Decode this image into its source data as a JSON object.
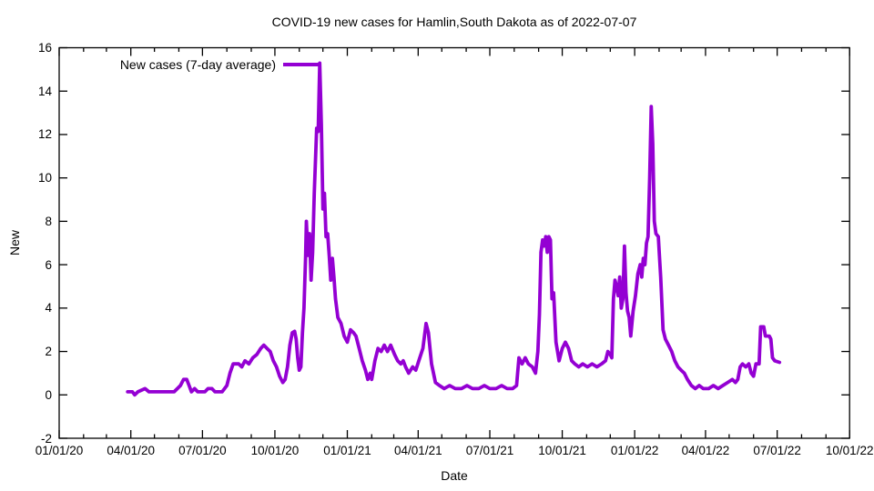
{
  "styles": {
    "background": "#ffffff",
    "text_color": "#000000",
    "accent": "#9400d3"
  },
  "chart_data": {
    "type": "line",
    "title": "COVID-19 new cases for Hamlin,South Dakota as of 2022-07-07",
    "xlabel": "Date",
    "ylabel": "New",
    "grid": false,
    "legend": {
      "position": "top-left-inside",
      "entries": [
        {
          "label": "New cases (7-day average)",
          "color": "#9400d3"
        }
      ]
    },
    "axes": {
      "x": {
        "start_date": "2020-01-01",
        "end_date": "2022-10-01",
        "major_ticks": [
          {
            "date": "2020-01-01",
            "label": "01/01/20"
          },
          {
            "date": "2020-04-01",
            "label": "04/01/20"
          },
          {
            "date": "2020-07-01",
            "label": "07/01/20"
          },
          {
            "date": "2020-10-01",
            "label": "10/01/20"
          },
          {
            "date": "2021-01-01",
            "label": "01/01/21"
          },
          {
            "date": "2021-04-01",
            "label": "04/01/21"
          },
          {
            "date": "2021-07-01",
            "label": "07/01/21"
          },
          {
            "date": "2021-10-01",
            "label": "10/01/21"
          },
          {
            "date": "2022-01-01",
            "label": "01/01/22"
          },
          {
            "date": "2022-04-01",
            "label": "04/01/22"
          },
          {
            "date": "2022-07-01",
            "label": "07/01/22"
          },
          {
            "date": "2022-10-01",
            "label": "10/01/22"
          }
        ],
        "minor_tick_interval": "1 month"
      },
      "y": {
        "min": -2,
        "max": 16,
        "tick_step": 2,
        "tick_labels": [
          "-2",
          "0",
          "2",
          "4",
          "6",
          "8",
          "10",
          "12",
          "14",
          "16"
        ]
      }
    },
    "series": [
      {
        "name": "New cases (7-day average)",
        "color": "#9400d3",
        "line_width": 3.8,
        "points": [
          [
            "2020-03-28",
            0.14
          ],
          [
            "2020-04-03",
            0.14
          ],
          [
            "2020-04-06",
            0
          ],
          [
            "2020-04-10",
            0.14
          ],
          [
            "2020-04-19",
            0.29
          ],
          [
            "2020-04-24",
            0.14
          ],
          [
            "2020-05-10",
            0.14
          ],
          [
            "2020-05-26",
            0.14
          ],
          [
            "2020-06-03",
            0.43
          ],
          [
            "2020-06-07",
            0.71
          ],
          [
            "2020-06-11",
            0.71
          ],
          [
            "2020-06-14",
            0.43
          ],
          [
            "2020-06-17",
            0.14
          ],
          [
            "2020-06-21",
            0.29
          ],
          [
            "2020-06-25",
            0.14
          ],
          [
            "2020-07-04",
            0.14
          ],
          [
            "2020-07-08",
            0.29
          ],
          [
            "2020-07-13",
            0.29
          ],
          [
            "2020-07-17",
            0.14
          ],
          [
            "2020-07-26",
            0.14
          ],
          [
            "2020-08-01",
            0.43
          ],
          [
            "2020-08-05",
            1.0
          ],
          [
            "2020-08-09",
            1.43
          ],
          [
            "2020-08-16",
            1.43
          ],
          [
            "2020-08-20",
            1.29
          ],
          [
            "2020-08-24",
            1.57
          ],
          [
            "2020-08-29",
            1.43
          ],
          [
            "2020-09-03",
            1.71
          ],
          [
            "2020-09-08",
            1.86
          ],
          [
            "2020-09-13",
            2.14
          ],
          [
            "2020-09-17",
            2.29
          ],
          [
            "2020-09-21",
            2.14
          ],
          [
            "2020-09-25",
            2.0
          ],
          [
            "2020-09-29",
            1.57
          ],
          [
            "2020-10-03",
            1.29
          ],
          [
            "2020-10-07",
            0.86
          ],
          [
            "2020-10-11",
            0.57
          ],
          [
            "2020-10-14",
            0.71
          ],
          [
            "2020-10-17",
            1.29
          ],
          [
            "2020-10-20",
            2.29
          ],
          [
            "2020-10-23",
            2.86
          ],
          [
            "2020-10-26",
            2.93
          ],
          [
            "2020-10-28",
            2.57
          ],
          [
            "2020-10-30",
            1.71
          ],
          [
            "2020-11-01",
            1.14
          ],
          [
            "2020-11-03",
            1.29
          ],
          [
            "2020-11-05",
            2.86
          ],
          [
            "2020-11-07",
            4.0
          ],
          [
            "2020-11-09",
            6.43
          ],
          [
            "2020-11-10",
            8.0
          ],
          [
            "2020-11-12",
            6.43
          ],
          [
            "2020-11-14",
            7.43
          ],
          [
            "2020-11-16",
            5.29
          ],
          [
            "2020-11-18",
            6.57
          ],
          [
            "2020-11-20",
            9.29
          ],
          [
            "2020-11-23",
            12.29
          ],
          [
            "2020-11-25",
            12.14
          ],
          [
            "2020-11-27",
            15.29
          ],
          [
            "2020-11-29",
            12.43
          ],
          [
            "2020-12-01",
            8.57
          ],
          [
            "2020-12-03",
            9.29
          ],
          [
            "2020-12-05",
            7.29
          ],
          [
            "2020-12-07",
            7.43
          ],
          [
            "2020-12-09",
            6.43
          ],
          [
            "2020-12-11",
            5.29
          ],
          [
            "2020-12-13",
            6.29
          ],
          [
            "2020-12-15",
            5.43
          ],
          [
            "2020-12-17",
            4.43
          ],
          [
            "2020-12-20",
            3.57
          ],
          [
            "2020-12-24",
            3.29
          ],
          [
            "2020-12-28",
            2.71
          ],
          [
            "2021-01-01",
            2.43
          ],
          [
            "2021-01-05",
            3.0
          ],
          [
            "2021-01-09",
            2.86
          ],
          [
            "2021-01-12",
            2.71
          ],
          [
            "2021-01-16",
            2.14
          ],
          [
            "2021-01-20",
            1.57
          ],
          [
            "2021-01-24",
            1.14
          ],
          [
            "2021-01-27",
            0.71
          ],
          [
            "2021-01-30",
            1.0
          ],
          [
            "2021-02-01",
            0.71
          ],
          [
            "2021-02-05",
            1.57
          ],
          [
            "2021-02-09",
            2.14
          ],
          [
            "2021-02-13",
            2.0
          ],
          [
            "2021-02-17",
            2.29
          ],
          [
            "2021-02-21",
            2.0
          ],
          [
            "2021-02-25",
            2.29
          ],
          [
            "2021-03-02",
            1.86
          ],
          [
            "2021-03-06",
            1.57
          ],
          [
            "2021-03-10",
            1.43
          ],
          [
            "2021-03-13",
            1.57
          ],
          [
            "2021-03-16",
            1.29
          ],
          [
            "2021-03-20",
            1.0
          ],
          [
            "2021-03-25",
            1.29
          ],
          [
            "2021-03-29",
            1.14
          ],
          [
            "2021-04-03",
            1.71
          ],
          [
            "2021-04-07",
            2.14
          ],
          [
            "2021-04-11",
            3.29
          ],
          [
            "2021-04-14",
            2.86
          ],
          [
            "2021-04-18",
            1.43
          ],
          [
            "2021-04-23",
            0.57
          ],
          [
            "2021-04-28",
            0.43
          ],
          [
            "2021-05-04",
            0.29
          ],
          [
            "2021-05-11",
            0.43
          ],
          [
            "2021-05-18",
            0.29
          ],
          [
            "2021-05-26",
            0.29
          ],
          [
            "2021-06-02",
            0.43
          ],
          [
            "2021-06-09",
            0.29
          ],
          [
            "2021-06-17",
            0.29
          ],
          [
            "2021-06-24",
            0.43
          ],
          [
            "2021-07-01",
            0.29
          ],
          [
            "2021-07-09",
            0.29
          ],
          [
            "2021-07-16",
            0.43
          ],
          [
            "2021-07-23",
            0.29
          ],
          [
            "2021-07-30",
            0.29
          ],
          [
            "2021-08-04",
            0.43
          ],
          [
            "2021-08-07",
            1.71
          ],
          [
            "2021-08-11",
            1.43
          ],
          [
            "2021-08-15",
            1.71
          ],
          [
            "2021-08-19",
            1.43
          ],
          [
            "2021-08-24",
            1.29
          ],
          [
            "2021-08-28",
            1.0
          ],
          [
            "2021-08-31",
            2.0
          ],
          [
            "2021-09-02",
            3.71
          ],
          [
            "2021-09-04",
            6.57
          ],
          [
            "2021-09-06",
            7.14
          ],
          [
            "2021-09-08",
            6.86
          ],
          [
            "2021-09-10",
            7.29
          ],
          [
            "2021-09-12",
            6.57
          ],
          [
            "2021-09-14",
            7.29
          ],
          [
            "2021-09-16",
            7.14
          ],
          [
            "2021-09-18",
            4.43
          ],
          [
            "2021-09-20",
            4.71
          ],
          [
            "2021-09-23",
            2.43
          ],
          [
            "2021-09-27",
            1.57
          ],
          [
            "2021-10-01",
            2.14
          ],
          [
            "2021-10-05",
            2.43
          ],
          [
            "2021-10-09",
            2.14
          ],
          [
            "2021-10-13",
            1.57
          ],
          [
            "2021-10-17",
            1.43
          ],
          [
            "2021-10-22",
            1.29
          ],
          [
            "2021-10-27",
            1.43
          ],
          [
            "2021-11-02",
            1.29
          ],
          [
            "2021-11-08",
            1.43
          ],
          [
            "2021-11-14",
            1.29
          ],
          [
            "2021-11-20",
            1.43
          ],
          [
            "2021-11-25",
            1.57
          ],
          [
            "2021-11-28",
            2.0
          ],
          [
            "2021-12-01",
            1.86
          ],
          [
            "2021-12-03",
            1.71
          ],
          [
            "2021-12-05",
            4.43
          ],
          [
            "2021-12-07",
            5.29
          ],
          [
            "2021-12-09",
            5.0
          ],
          [
            "2021-12-11",
            4.57
          ],
          [
            "2021-12-13",
            5.43
          ],
          [
            "2021-12-15",
            4.0
          ],
          [
            "2021-12-17",
            4.43
          ],
          [
            "2021-12-19",
            6.86
          ],
          [
            "2021-12-21",
            4.71
          ],
          [
            "2021-12-23",
            3.86
          ],
          [
            "2021-12-25",
            3.57
          ],
          [
            "2021-12-27",
            2.71
          ],
          [
            "2021-12-30",
            3.86
          ],
          [
            "2022-01-02",
            4.57
          ],
          [
            "2022-01-05",
            5.57
          ],
          [
            "2022-01-08",
            6.0
          ],
          [
            "2022-01-10",
            5.43
          ],
          [
            "2022-01-12",
            6.29
          ],
          [
            "2022-01-14",
            6.0
          ],
          [
            "2022-01-16",
            7.0
          ],
          [
            "2022-01-18",
            7.29
          ],
          [
            "2022-01-20",
            10.0
          ],
          [
            "2022-01-22",
            13.29
          ],
          [
            "2022-01-24",
            11.57
          ],
          [
            "2022-01-26",
            8.0
          ],
          [
            "2022-01-28",
            7.43
          ],
          [
            "2022-01-31",
            7.29
          ],
          [
            "2022-02-03",
            5.43
          ],
          [
            "2022-02-06",
            3.0
          ],
          [
            "2022-02-09",
            2.57
          ],
          [
            "2022-02-13",
            2.29
          ],
          [
            "2022-02-17",
            2.0
          ],
          [
            "2022-02-21",
            1.57
          ],
          [
            "2022-02-25",
            1.29
          ],
          [
            "2022-03-01",
            1.14
          ],
          [
            "2022-03-05",
            1.0
          ],
          [
            "2022-03-09",
            0.71
          ],
          [
            "2022-03-14",
            0.43
          ],
          [
            "2022-03-19",
            0.29
          ],
          [
            "2022-03-24",
            0.43
          ],
          [
            "2022-03-29",
            0.29
          ],
          [
            "2022-04-05",
            0.29
          ],
          [
            "2022-04-11",
            0.43
          ],
          [
            "2022-04-17",
            0.29
          ],
          [
            "2022-04-23",
            0.43
          ],
          [
            "2022-04-29",
            0.57
          ],
          [
            "2022-05-05",
            0.71
          ],
          [
            "2022-05-09",
            0.57
          ],
          [
            "2022-05-12",
            0.71
          ],
          [
            "2022-05-15",
            1.29
          ],
          [
            "2022-05-18",
            1.43
          ],
          [
            "2022-05-22",
            1.29
          ],
          [
            "2022-05-26",
            1.43
          ],
          [
            "2022-05-29",
            1.0
          ],
          [
            "2022-06-01",
            0.86
          ],
          [
            "2022-06-04",
            1.43
          ],
          [
            "2022-06-08",
            1.43
          ],
          [
            "2022-06-10",
            3.14
          ],
          [
            "2022-06-14",
            3.14
          ],
          [
            "2022-06-16",
            2.71
          ],
          [
            "2022-06-21",
            2.71
          ],
          [
            "2022-06-23",
            2.57
          ],
          [
            "2022-06-25",
            1.71
          ],
          [
            "2022-06-28",
            1.57
          ],
          [
            "2022-07-04",
            1.5
          ]
        ]
      }
    ]
  }
}
